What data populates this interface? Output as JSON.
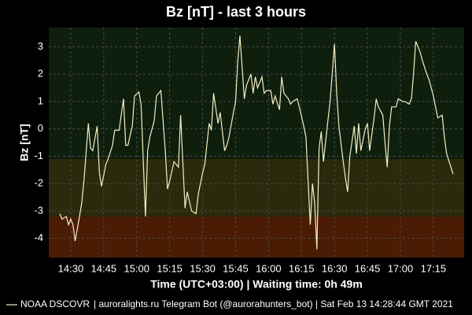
{
  "chart_data": {
    "type": "line",
    "title": "Bz [nT] - last 3 hours",
    "xlabel": "Time (UTC+03:00) | Waiting time: 0h 49m",
    "ylabel": "Bz [nT]",
    "footer": "| auroralights.ru Telegram Bot (@aurorahunters_bot) | Sat Feb 13 14:28:44 GMT 2021",
    "xlim": [
      "14:20",
      "17:29"
    ],
    "xticks": [
      "14:30",
      "14:45",
      "15:00",
      "15:15",
      "15:30",
      "15:45",
      "16:00",
      "16:15",
      "16:30",
      "16:45",
      "17:00",
      "17:15"
    ],
    "ylim": [
      -4.7,
      3.7
    ],
    "yticks": [
      -4,
      -3,
      -2,
      -1,
      0,
      1,
      2,
      3
    ],
    "grid": true,
    "bands": [
      {
        "from": -1.1,
        "to": 3.7,
        "color": "#0e1f0e"
      },
      {
        "from": -3.2,
        "to": -1.1,
        "color": "#2b2a0c"
      },
      {
        "from": -4.7,
        "to": -3.2,
        "color": "#4b1c04"
      }
    ],
    "x": [
      "14:25",
      "14:26",
      "14:28",
      "14:29",
      "14:30",
      "14:31",
      "14:32",
      "14:34",
      "14:35",
      "14:36",
      "14:38",
      "14:39",
      "14:40",
      "14:42",
      "14:43",
      "14:44",
      "14:46",
      "14:47",
      "14:49",
      "14:50",
      "14:52",
      "14:54",
      "14:55",
      "14:56",
      "14:58",
      "14:59",
      "15:01",
      "15:02",
      "15:04",
      "15:05",
      "15:06",
      "15:08",
      "15:09",
      "15:11",
      "15:13",
      "15:14",
      "15:15",
      "15:17",
      "15:19",
      "15:20",
      "15:22",
      "15:23",
      "15:25",
      "15:27",
      "15:28",
      "15:30",
      "15:31",
      "15:33",
      "15:34",
      "15:35",
      "15:37",
      "15:38",
      "15:40",
      "15:41",
      "15:42",
      "15:44",
      "15:45",
      "15:46",
      "15:47",
      "15:49",
      "15:50",
      "15:52",
      "15:53",
      "15:54",
      "15:55",
      "15:57",
      "15:58",
      "15:59",
      "16:01",
      "16:02",
      "16:03",
      "16:05",
      "16:06",
      "16:07",
      "16:09",
      "16:10",
      "16:11",
      "16:13",
      "16:14",
      "16:16",
      "16:17",
      "16:19",
      "16:20",
      "16:21",
      "16:22",
      "16:23",
      "16:24",
      "16:25",
      "16:27",
      "16:28",
      "16:30",
      "16:31",
      "16:32",
      "16:34",
      "16:35",
      "16:36",
      "16:37",
      "16:39",
      "16:40",
      "16:41",
      "16:42",
      "16:44",
      "16:45",
      "16:46",
      "16:48",
      "16:49",
      "16:50",
      "16:52",
      "16:53",
      "16:54",
      "16:55",
      "16:56",
      "16:58",
      "16:59",
      "17:01",
      "17:02",
      "17:04",
      "17:05",
      "17:06",
      "17:07",
      "17:09",
      "17:10",
      "17:12",
      "17:13",
      "17:15",
      "17:16",
      "17:17",
      "17:19",
      "17:20",
      "17:21",
      "17:23",
      "17:24"
    ],
    "series": [
      {
        "name": "NOAA DSCOVR",
        "color": "#f4efc4",
        "values": [
          -3.1,
          -3.3,
          -3.2,
          -3.5,
          -3.3,
          -3.5,
          -4.1,
          -3.2,
          -2.7,
          -1.9,
          0.2,
          -0.7,
          -0.8,
          0.1,
          -1.6,
          -2.1,
          -1.3,
          -1.1,
          -0.6,
          -0.05,
          -0.05,
          1.1,
          -0.6,
          -0.6,
          0.1,
          1.2,
          1.35,
          0.9,
          -3.2,
          -0.8,
          -0.3,
          0.3,
          1.2,
          1.4,
          -0.8,
          -2.2,
          -1.9,
          -1.2,
          -1.4,
          0.5,
          -2.9,
          -2.3,
          -3.0,
          -3.1,
          -2.4,
          -1.6,
          -1.3,
          0.2,
          -0.05,
          1.3,
          0.2,
          0.6,
          -0.8,
          -0.6,
          -0.3,
          0.6,
          1.0,
          2.5,
          3.4,
          1.1,
          1.6,
          2.0,
          1.3,
          1.9,
          1.5,
          1.9,
          1.3,
          1.4,
          1.4,
          0.9,
          1.2,
          0.7,
          1.9,
          1.3,
          1.1,
          0.9,
          1.0,
          1.1,
          0.8,
          0.1,
          -0.3,
          -3.5,
          -2.0,
          -2.7,
          -4.4,
          -0.7,
          -0.1,
          -1.2,
          0.3,
          1.0,
          3.1,
          1.3,
          0.1,
          -1.2,
          -1.8,
          -2.3,
          -1.0,
          0.1,
          -0.9,
          0.2,
          -0.8,
          0.0,
          0.2,
          -0.8,
          0.4,
          1.1,
          0.8,
          0.5,
          -0.5,
          -1.4,
          0.1,
          0.8,
          0.8,
          1.1,
          1.0,
          1.0,
          0.9,
          1.1,
          2.0,
          3.2,
          2.8,
          2.5,
          2.0,
          1.8,
          1.2,
          0.8,
          0.4,
          0.5,
          -0.3,
          -0.9,
          -1.4,
          -1.65
        ]
      }
    ]
  }
}
